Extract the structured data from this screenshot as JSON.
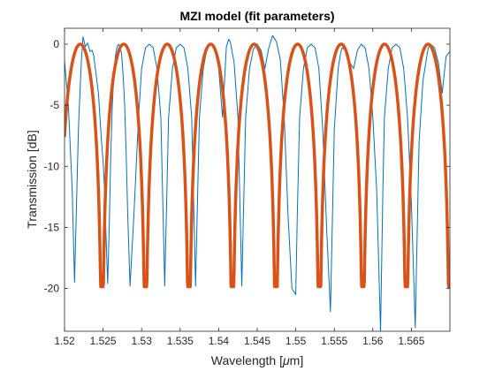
{
  "chart_data": {
    "type": "line",
    "title": "MZI model (fit parameters)",
    "xlabel_prefix": "Wavelength [",
    "xlabel_mu": "μ",
    "xlabel_suffix": "m]",
    "ylabel": "Transmission [dB]",
    "xlim": [
      1.52,
      1.57
    ],
    "ylim": [
      -23.5,
      1.3
    ],
    "xticks": [
      1.52,
      1.525,
      1.53,
      1.535,
      1.54,
      1.545,
      1.55,
      1.555,
      1.56,
      1.565
    ],
    "xtick_labels": [
      "1.52",
      "1.525",
      "1.53",
      "1.535",
      "1.54",
      "1.545",
      "1.55",
      "1.555",
      "1.56",
      "1.565"
    ],
    "yticks": [
      0,
      -5,
      -10,
      -15,
      -20
    ],
    "ytick_labels": [
      "0",
      "-5",
      "-10",
      "-15",
      "-20"
    ],
    "grid": false,
    "box": true,
    "series": [
      {
        "role": "measured",
        "color": "#0072BD",
        "line_width": 1,
        "x": [
          1.52,
          1.5205,
          1.521,
          1.5213,
          1.5216,
          1.5218,
          1.522,
          1.5222,
          1.5224,
          1.5227,
          1.523,
          1.5233,
          1.5236,
          1.5238,
          1.524,
          1.5242,
          1.5244,
          1.5246,
          1.5248,
          1.525,
          1.5252,
          1.5254,
          1.5256,
          1.5258,
          1.526,
          1.5262,
          1.5264,
          1.5266,
          1.5268,
          1.527,
          1.5272,
          1.5274,
          1.5276,
          1.5278,
          1.528,
          1.5282,
          1.5285,
          1.529,
          1.5296,
          1.53,
          1.5305,
          1.531,
          1.5315,
          1.532,
          1.5325,
          1.533,
          1.5335,
          1.534,
          1.5345,
          1.535,
          1.5355,
          1.536,
          1.5365,
          1.537,
          1.5375,
          1.538,
          1.5385,
          1.539,
          1.5395,
          1.54,
          1.5405,
          1.541,
          1.5413,
          1.5415,
          1.542,
          1.5425,
          1.543,
          1.5435,
          1.544,
          1.5445,
          1.545,
          1.5455,
          1.546,
          1.5465,
          1.547,
          1.5472,
          1.5475,
          1.548,
          1.5485,
          1.549,
          1.5495,
          1.55,
          1.5502,
          1.5505,
          1.551,
          1.5515,
          1.552,
          1.5525,
          1.553,
          1.5535,
          1.554,
          1.5545,
          1.555,
          1.5555,
          1.5558,
          1.556,
          1.5565,
          1.557,
          1.5575,
          1.558,
          1.5585,
          1.559,
          1.5595,
          1.56,
          1.5605,
          1.561,
          1.5613,
          1.5615,
          1.562,
          1.5625,
          1.563,
          1.5635,
          1.564,
          1.5645,
          1.565,
          1.5655,
          1.566,
          1.5665,
          1.567,
          1.5672,
          1.5675,
          1.568,
          1.5685,
          1.569,
          1.5695,
          1.57
        ],
        "y": [
          -1.4,
          -5,
          -12,
          -19.5,
          -12,
          -7,
          -4,
          -1.2,
          0.6,
          -0.2,
          0.1,
          -0.6,
          -0.5,
          -1,
          -2,
          -3,
          -4,
          -6,
          -8,
          -9.5,
          -12,
          -16,
          -19.6,
          -15,
          -9,
          -5,
          -2.5,
          -1,
          -0.3,
          0,
          -0.2,
          -0.8,
          -2.5,
          -5,
          -9,
          -14,
          -19.8,
          -14,
          -6,
          -2,
          -0.3,
          0,
          -0.3,
          -2,
          -6,
          -19.8,
          -6,
          -2,
          -0.3,
          0,
          -0.3,
          -2,
          -6,
          -19.8,
          -6,
          -2,
          -0.3,
          0,
          -0.3,
          -2,
          -6,
          -0.2,
          0.4,
          0.2,
          -1.5,
          -6,
          -19.8,
          -6,
          -2,
          -0.4,
          0,
          -0.5,
          -2,
          -0.3,
          0.7,
          0.5,
          0.2,
          -1.3,
          -6,
          -14,
          -20,
          -20.5,
          -14,
          -6,
          -2,
          -0.3,
          0,
          -0.3,
          -2,
          -7,
          -15,
          -21.9,
          -7,
          -2,
          -0.8,
          -0.3,
          -0.5,
          -1.5,
          -2,
          -0.5,
          0,
          -0.3,
          -2,
          -6,
          -12,
          -23.5,
          -12,
          -6,
          -2,
          -0.3,
          0,
          -0.3,
          -2,
          -6,
          -13,
          -23.2,
          -8,
          -3,
          -1,
          -0.3,
          0,
          -0.3,
          -1.5,
          -4,
          -1,
          -0.6
        ]
      },
      {
        "role": "fit",
        "color": "#D95319",
        "line_width": 3.5,
        "model": "mzi",
        "period": 0.005641,
        "first_null": 1.52204,
        "floor_db": -19.85,
        "x_step": 5e-05
      }
    ]
  }
}
